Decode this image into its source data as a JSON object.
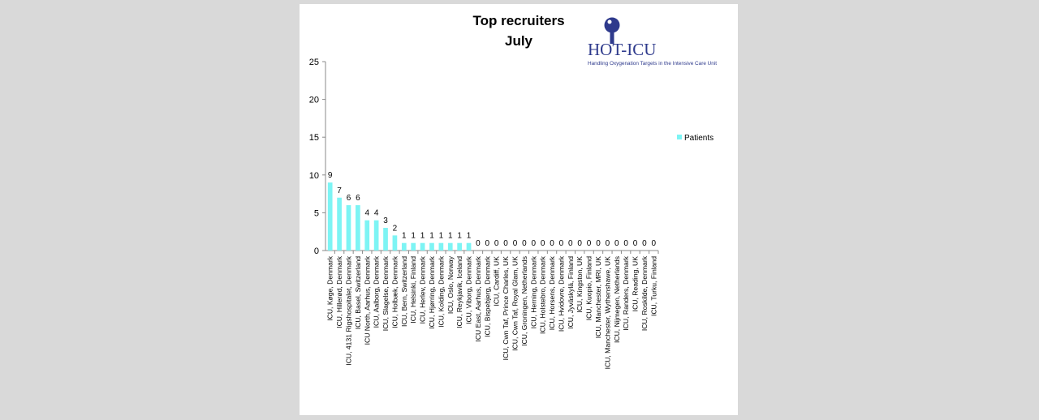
{
  "chart_data": {
    "type": "bar",
    "title": "Top recruiters",
    "subtitle": "July",
    "xlabel": "",
    "ylabel": "",
    "ylim": [
      0,
      25
    ],
    "yticks": [
      "0",
      "5",
      "10",
      "15",
      "20",
      "25"
    ],
    "grid": false,
    "legend_position": "right",
    "colors": {
      "bar": "#7df4f4"
    },
    "categories": [
      "ICU, Køge, Denmark",
      "ICU, Hillerød, Denmark",
      "ICU, 4131 Rigshospitalet, Denmark",
      "ICU, Basel, Switzerland",
      "ICU North, Aarhus, Denmark",
      "ICU, Aalborg, Denmark",
      "ICU, Slagelse, Denmark",
      "ICU, Holbæk, Denmark",
      "ICU, Bern, Switzerland",
      "ICU, Helsinki, Finland",
      "ICU, Herlev, Denmark",
      "ICU, Hjørring, Denmark",
      "ICU, Kolding, Denmark",
      "ICU, Oslo, Norway",
      "ICU, Reykjavik, Iceland",
      "ICU, Viborg, Denmark",
      "ICU East, Aarhus, Denmark",
      "ICU, Bispebjerg, Denmark",
      "ICU, Cardiff, UK",
      "ICU, Cwn Taf, Prince Charles, UK",
      "ICU, Cwn Taf, Royal Glam, UK",
      "ICU, Groningen, Netherlands",
      "ICU, Herning, Denmark",
      "ICU, Holstebro, Denmark",
      "ICU, Horsens, Denmark",
      "ICU, Hvidovre, Denmark",
      "ICU, Jyväskylä, Finland",
      "ICU, Kingston, UK",
      "ICU, Kuopio, Finland",
      "ICU, Manchester, MRI, UK",
      "ICU, Manchester, Wythenshawe, UK",
      "ICU, Nijmegen, Netherlands",
      "ICU, Randers, Denmark",
      "ICU, Reading, UK",
      "ICU, Roskilde, Denmark",
      "ICU, Turku, Finland"
    ],
    "series": [
      {
        "name": "Patients",
        "values": [
          9,
          7,
          6,
          6,
          4,
          4,
          3,
          2,
          1,
          1,
          1,
          1,
          1,
          1,
          1,
          1,
          0,
          0,
          0,
          0,
          0,
          0,
          0,
          0,
          0,
          0,
          0,
          0,
          0,
          0,
          0,
          0,
          0,
          0,
          0,
          0
        ]
      }
    ]
  },
  "logo": {
    "text": "HOT-ICU",
    "subtitle": "Handling Oxygenation Targets in the Intensive Care Unit",
    "color": "#2e3a8c"
  }
}
